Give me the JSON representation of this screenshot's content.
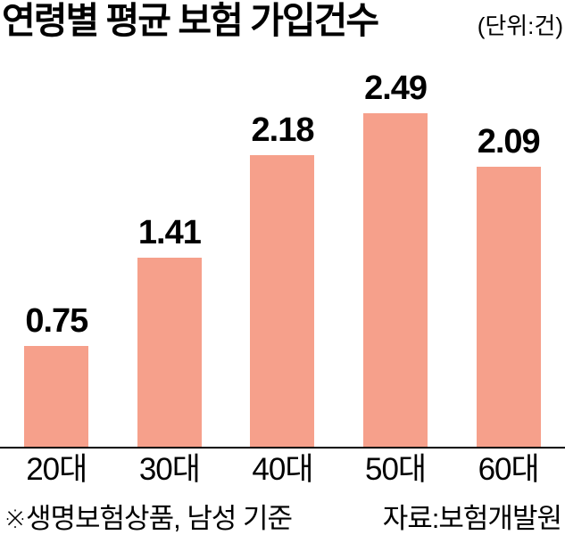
{
  "title": "연령별 평균 보험 가입건수",
  "unit_label": "(단위:건)",
  "footnote": "※생명보험상품, 남성 기준",
  "source": "자료:보험개발원",
  "colors": {
    "bar": "#F6A08B",
    "axis": "#000000",
    "text": "#000000"
  },
  "chart_data": {
    "type": "bar",
    "title": "연령별 평균 보험 가입건수",
    "unit": "건",
    "categories": [
      "20대",
      "30대",
      "40대",
      "50대",
      "60대"
    ],
    "values": [
      0.75,
      1.41,
      2.18,
      2.49,
      2.09
    ],
    "value_labels": [
      "0.75",
      "1.41",
      "2.18",
      "2.49",
      "2.09"
    ],
    "xlabel": "",
    "ylabel": "",
    "ylim": [
      0,
      2.95
    ],
    "grid": false,
    "legend": false,
    "note": "※생명보험상품, 남성 기준",
    "source": "자료:보험개발원"
  }
}
